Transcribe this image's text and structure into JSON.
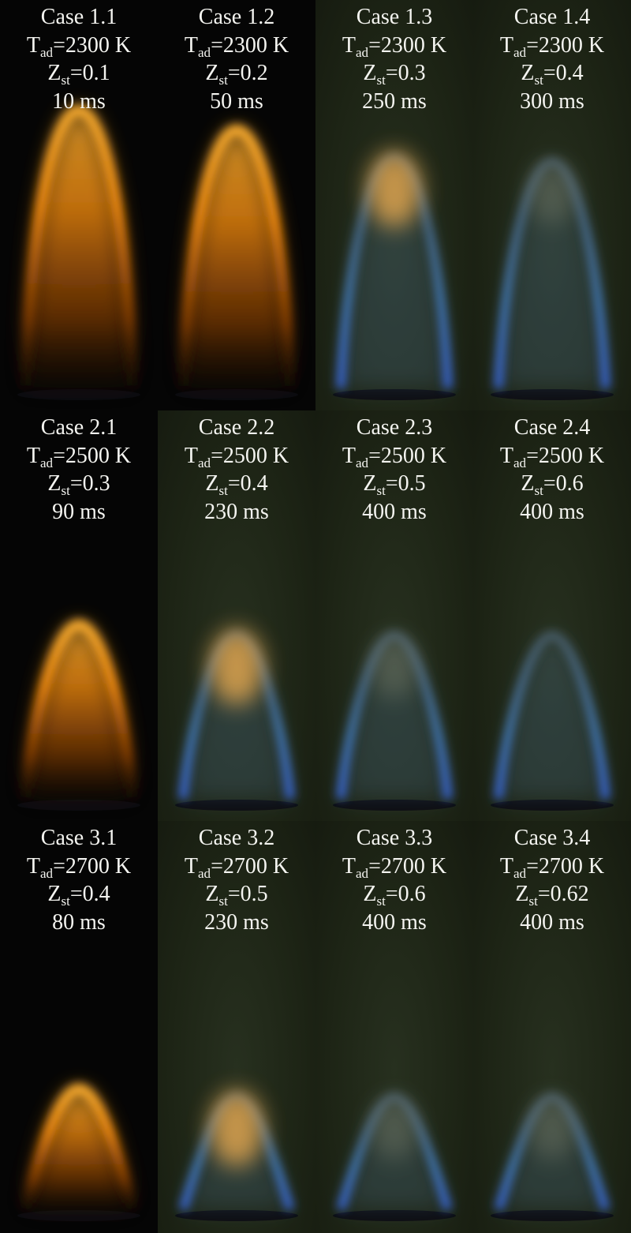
{
  "cases": [
    {
      "case": "Case 1.1",
      "T_label": "T",
      "T_sub": "ad",
      "T_value": "=2300 K",
      "Z_label": "Z",
      "Z_sub": "st",
      "Z_value": "=0.1",
      "time": "10 ms",
      "flame": "orange",
      "background": "dark"
    },
    {
      "case": "Case 1.2",
      "T_label": "T",
      "T_sub": "ad",
      "T_value": "=2300 K",
      "Z_label": "Z",
      "Z_sub": "st",
      "Z_value": "=0.2",
      "time": "50 ms",
      "flame": "orange",
      "background": "dark"
    },
    {
      "case": "Case 1.3",
      "T_label": "T",
      "T_sub": "ad",
      "T_value": "=2300 K",
      "Z_label": "Z",
      "Z_sub": "st",
      "Z_value": "=0.3",
      "time": "250 ms",
      "flame": "blue-orange-tip",
      "background": "olive"
    },
    {
      "case": "Case 1.4",
      "T_label": "T",
      "T_sub": "ad",
      "T_value": "=2300 K",
      "Z_label": "Z",
      "Z_sub": "st",
      "Z_value": "=0.4",
      "time": "300 ms",
      "flame": "blue-faint-tip",
      "background": "olive"
    },
    {
      "case": "Case 2.1",
      "T_label": "T",
      "T_sub": "ad",
      "T_value": "=2500 K",
      "Z_label": "Z",
      "Z_sub": "st",
      "Z_value": "=0.3",
      "time": "90 ms",
      "flame": "orange",
      "background": "dark"
    },
    {
      "case": "Case 2.2",
      "T_label": "T",
      "T_sub": "ad",
      "T_value": "=2500 K",
      "Z_label": "Z",
      "Z_sub": "st",
      "Z_value": "=0.4",
      "time": "230 ms",
      "flame": "blue-orange-tip",
      "background": "olive"
    },
    {
      "case": "Case 2.3",
      "T_label": "T",
      "T_sub": "ad",
      "T_value": "=2500 K",
      "Z_label": "Z",
      "Z_sub": "st",
      "Z_value": "=0.5",
      "time": "400 ms",
      "flame": "blue-faint-tip",
      "background": "olive"
    },
    {
      "case": "Case 2.4",
      "T_label": "T",
      "T_sub": "ad",
      "T_value": "=2500 K",
      "Z_label": "Z",
      "Z_sub": "st",
      "Z_value": "=0.6",
      "time": "400 ms",
      "flame": "blue",
      "background": "olive"
    },
    {
      "case": "Case 3.1",
      "T_label": "T",
      "T_sub": "ad",
      "T_value": "=2700 K",
      "Z_label": "Z",
      "Z_sub": "st",
      "Z_value": "=0.4",
      "time": "80 ms",
      "flame": "orange",
      "background": "dark"
    },
    {
      "case": "Case 3.2",
      "T_label": "T",
      "T_sub": "ad",
      "T_value": "=2700 K",
      "Z_label": "Z",
      "Z_sub": "st",
      "Z_value": "=0.5",
      "time": "230 ms",
      "flame": "blue-orange-tip",
      "background": "olive"
    },
    {
      "case": "Case 3.3",
      "T_label": "T",
      "T_sub": "ad",
      "T_value": "=2700 K",
      "Z_label": "Z",
      "Z_sub": "st",
      "Z_value": "=0.6",
      "time": "400 ms",
      "flame": "blue-faint-tip",
      "background": "olive"
    },
    {
      "case": "Case 3.4",
      "T_label": "T",
      "T_sub": "ad",
      "T_value": "=2700 K",
      "Z_label": "Z",
      "Z_sub": "st",
      "Z_value": "=0.62",
      "time": "400 ms",
      "flame": "blue-faint-tip",
      "background": "olive"
    }
  ],
  "colors": {
    "orange_flame": "#ff9a1a",
    "blue_flame": "#4a8ee0",
    "dark_background": "#050505",
    "olive_background": "#1d2415",
    "text": "#f4f4f0"
  }
}
